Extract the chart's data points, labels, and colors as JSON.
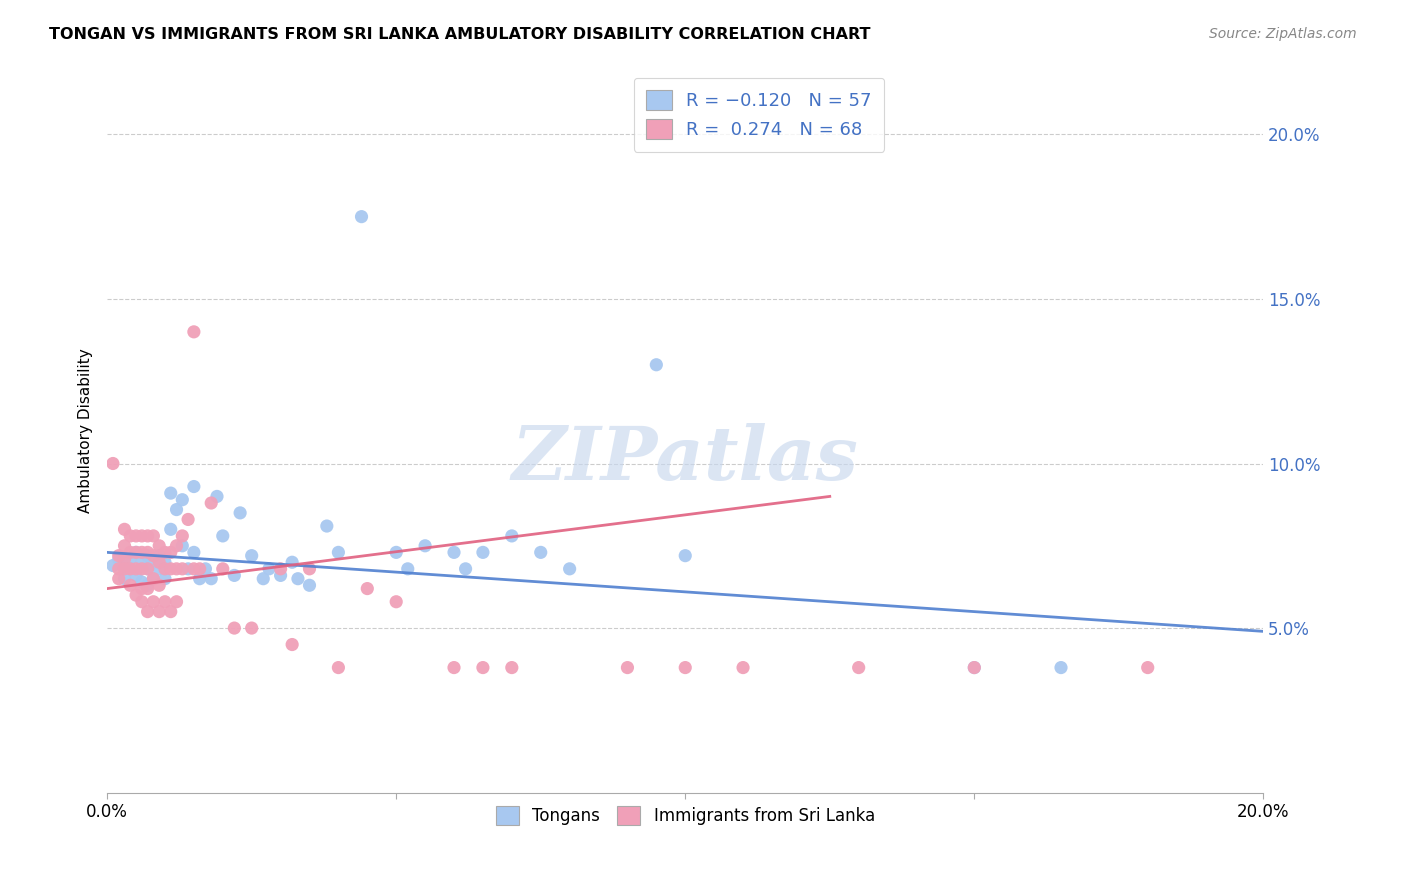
{
  "title": "TONGAN VS IMMIGRANTS FROM SRI LANKA AMBULATORY DISABILITY CORRELATION CHART",
  "source": "Source: ZipAtlas.com",
  "ylabel": "Ambulatory Disability",
  "xlim": [
    0.0,
    0.2
  ],
  "ylim": [
    0.0,
    0.22
  ],
  "xticks": [
    0.0,
    0.05,
    0.1,
    0.15,
    0.2
  ],
  "xticklabels": [
    "0.0%",
    "",
    "",
    "",
    "20.0%"
  ],
  "yticks": [
    0.05,
    0.1,
    0.15,
    0.2
  ],
  "yticklabels": [
    "5.0%",
    "10.0%",
    "15.0%",
    "20.0%"
  ],
  "watermark": "ZIPatlas",
  "blue_color": "#A8C8F0",
  "pink_color": "#F0A0B8",
  "trendline_blue": "#5080D0",
  "trendline_pink": "#E06080",
  "blue_scatter": [
    [
      0.001,
      0.069
    ],
    [
      0.002,
      0.071
    ],
    [
      0.003,
      0.069
    ],
    [
      0.003,
      0.065
    ],
    [
      0.004,
      0.071
    ],
    [
      0.004,
      0.068
    ],
    [
      0.005,
      0.073
    ],
    [
      0.005,
      0.066
    ],
    [
      0.006,
      0.07
    ],
    [
      0.006,
      0.064
    ],
    [
      0.007,
      0.072
    ],
    [
      0.007,
      0.068
    ],
    [
      0.007,
      0.063
    ],
    [
      0.008,
      0.07
    ],
    [
      0.008,
      0.065
    ],
    [
      0.009,
      0.072
    ],
    [
      0.009,
      0.068
    ],
    [
      0.01,
      0.07
    ],
    [
      0.01,
      0.065
    ],
    [
      0.011,
      0.091
    ],
    [
      0.011,
      0.08
    ],
    [
      0.012,
      0.086
    ],
    [
      0.013,
      0.089
    ],
    [
      0.013,
      0.075
    ],
    [
      0.014,
      0.068
    ],
    [
      0.015,
      0.093
    ],
    [
      0.015,
      0.073
    ],
    [
      0.016,
      0.065
    ],
    [
      0.017,
      0.068
    ],
    [
      0.018,
      0.065
    ],
    [
      0.019,
      0.09
    ],
    [
      0.02,
      0.078
    ],
    [
      0.022,
      0.066
    ],
    [
      0.023,
      0.085
    ],
    [
      0.025,
      0.072
    ],
    [
      0.027,
      0.065
    ],
    [
      0.028,
      0.068
    ],
    [
      0.03,
      0.066
    ],
    [
      0.032,
      0.07
    ],
    [
      0.033,
      0.065
    ],
    [
      0.035,
      0.063
    ],
    [
      0.038,
      0.081
    ],
    [
      0.04,
      0.073
    ],
    [
      0.044,
      0.175
    ],
    [
      0.05,
      0.073
    ],
    [
      0.052,
      0.068
    ],
    [
      0.055,
      0.075
    ],
    [
      0.06,
      0.073
    ],
    [
      0.062,
      0.068
    ],
    [
      0.065,
      0.073
    ],
    [
      0.07,
      0.078
    ],
    [
      0.075,
      0.073
    ],
    [
      0.08,
      0.068
    ],
    [
      0.095,
      0.13
    ],
    [
      0.1,
      0.072
    ],
    [
      0.15,
      0.038
    ],
    [
      0.165,
      0.038
    ]
  ],
  "pink_scatter": [
    [
      0.001,
      0.1
    ],
    [
      0.002,
      0.072
    ],
    [
      0.002,
      0.068
    ],
    [
      0.002,
      0.065
    ],
    [
      0.003,
      0.08
    ],
    [
      0.003,
      0.075
    ],
    [
      0.003,
      0.071
    ],
    [
      0.003,
      0.068
    ],
    [
      0.004,
      0.078
    ],
    [
      0.004,
      0.073
    ],
    [
      0.004,
      0.068
    ],
    [
      0.004,
      0.063
    ],
    [
      0.005,
      0.078
    ],
    [
      0.005,
      0.073
    ],
    [
      0.005,
      0.068
    ],
    [
      0.005,
      0.06
    ],
    [
      0.006,
      0.078
    ],
    [
      0.006,
      0.073
    ],
    [
      0.006,
      0.068
    ],
    [
      0.006,
      0.062
    ],
    [
      0.006,
      0.058
    ],
    [
      0.007,
      0.078
    ],
    [
      0.007,
      0.073
    ],
    [
      0.007,
      0.068
    ],
    [
      0.007,
      0.062
    ],
    [
      0.007,
      0.055
    ],
    [
      0.008,
      0.078
    ],
    [
      0.008,
      0.072
    ],
    [
      0.008,
      0.065
    ],
    [
      0.008,
      0.058
    ],
    [
      0.009,
      0.075
    ],
    [
      0.009,
      0.07
    ],
    [
      0.009,
      0.063
    ],
    [
      0.009,
      0.055
    ],
    [
      0.01,
      0.073
    ],
    [
      0.01,
      0.068
    ],
    [
      0.01,
      0.058
    ],
    [
      0.011,
      0.073
    ],
    [
      0.011,
      0.068
    ],
    [
      0.011,
      0.055
    ],
    [
      0.012,
      0.075
    ],
    [
      0.012,
      0.068
    ],
    [
      0.012,
      0.058
    ],
    [
      0.013,
      0.078
    ],
    [
      0.013,
      0.068
    ],
    [
      0.014,
      0.083
    ],
    [
      0.015,
      0.14
    ],
    [
      0.015,
      0.068
    ],
    [
      0.016,
      0.068
    ],
    [
      0.018,
      0.088
    ],
    [
      0.02,
      0.068
    ],
    [
      0.022,
      0.05
    ],
    [
      0.025,
      0.05
    ],
    [
      0.03,
      0.068
    ],
    [
      0.032,
      0.045
    ],
    [
      0.035,
      0.068
    ],
    [
      0.04,
      0.038
    ],
    [
      0.045,
      0.062
    ],
    [
      0.05,
      0.058
    ],
    [
      0.06,
      0.038
    ],
    [
      0.065,
      0.038
    ],
    [
      0.07,
      0.038
    ],
    [
      0.09,
      0.038
    ],
    [
      0.1,
      0.038
    ],
    [
      0.11,
      0.038
    ],
    [
      0.13,
      0.038
    ],
    [
      0.15,
      0.038
    ],
    [
      0.18,
      0.038
    ]
  ],
  "blue_trend_x": [
    0.0,
    0.2
  ],
  "blue_trend_y": [
    0.073,
    0.049
  ],
  "pink_trend_x": [
    0.0,
    0.125
  ],
  "pink_trend_y": [
    0.062,
    0.09
  ]
}
